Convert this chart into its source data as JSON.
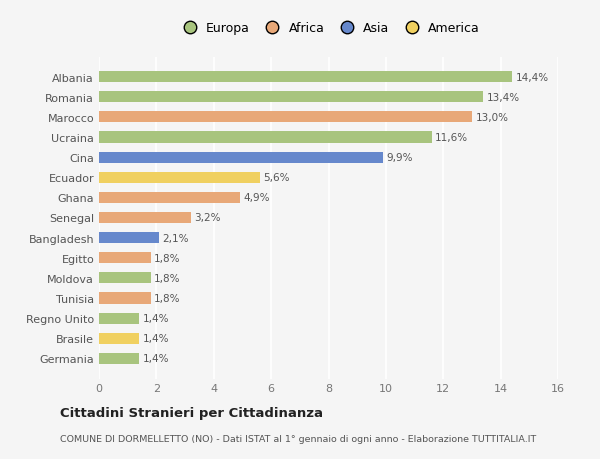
{
  "countries": [
    "Albania",
    "Romania",
    "Marocco",
    "Ucraina",
    "Cina",
    "Ecuador",
    "Ghana",
    "Senegal",
    "Bangladesh",
    "Egitto",
    "Moldova",
    "Tunisia",
    "Regno Unito",
    "Brasile",
    "Germania"
  ],
  "values": [
    14.4,
    13.4,
    13.0,
    11.6,
    9.9,
    5.6,
    4.9,
    3.2,
    2.1,
    1.8,
    1.8,
    1.8,
    1.4,
    1.4,
    1.4
  ],
  "labels": [
    "14,4%",
    "13,4%",
    "13,0%",
    "11,6%",
    "9,9%",
    "5,6%",
    "4,9%",
    "3,2%",
    "2,1%",
    "1,8%",
    "1,8%",
    "1,8%",
    "1,4%",
    "1,4%",
    "1,4%"
  ],
  "continents": [
    "Europa",
    "Europa",
    "Africa",
    "Europa",
    "Asia",
    "America",
    "Africa",
    "Africa",
    "Asia",
    "Africa",
    "Europa",
    "Africa",
    "Europa",
    "America",
    "Europa"
  ],
  "continent_colors": {
    "Europa": "#a8c47e",
    "Africa": "#e8a878",
    "Asia": "#6688cc",
    "America": "#f0d060"
  },
  "legend_order": [
    "Europa",
    "Africa",
    "Asia",
    "America"
  ],
  "xlim": [
    0,
    16
  ],
  "xticks": [
    0,
    2,
    4,
    6,
    8,
    10,
    12,
    14,
    16
  ],
  "title": "Cittadini Stranieri per Cittadinanza",
  "subtitle": "COMUNE DI DORMELLETTO (NO) - Dati ISTAT al 1° gennaio di ogni anno - Elaborazione TUTTITALIA.IT",
  "bg_color": "#f5f5f5",
  "grid_color": "#ffffff",
  "bar_height": 0.55
}
